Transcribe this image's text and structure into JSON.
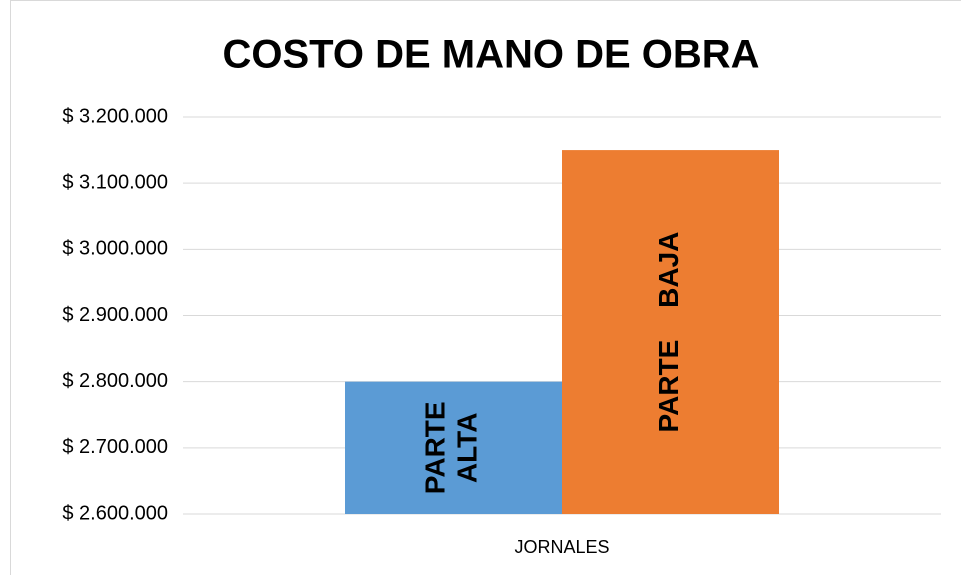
{
  "chart_data": {
    "type": "bar",
    "title": "COSTO DE MANO DE OBRA",
    "categories": [
      "JORNALES"
    ],
    "series": [
      {
        "name": "PARTE ALTA",
        "color": "#5b9bd5",
        "values": [
          2800000
        ]
      },
      {
        "name": "PARTE BAJA",
        "color": "#ed7d31",
        "values": [
          3150000
        ]
      }
    ],
    "ylim": [
      2600000,
      3200000
    ],
    "yticks": [
      {
        "value": 2600000,
        "label": "$ 2.600.000"
      },
      {
        "value": 2700000,
        "label": "$ 2.700.000"
      },
      {
        "value": 2800000,
        "label": "$ 2.800.000"
      },
      {
        "value": 2900000,
        "label": "$ 2.900.000"
      },
      {
        "value": 3000000,
        "label": "$ 3.000.000"
      },
      {
        "value": 3100000,
        "label": "$ 3.100.000"
      },
      {
        "value": 3200000,
        "label": "$ 3.200.000"
      }
    ],
    "grid": true
  }
}
